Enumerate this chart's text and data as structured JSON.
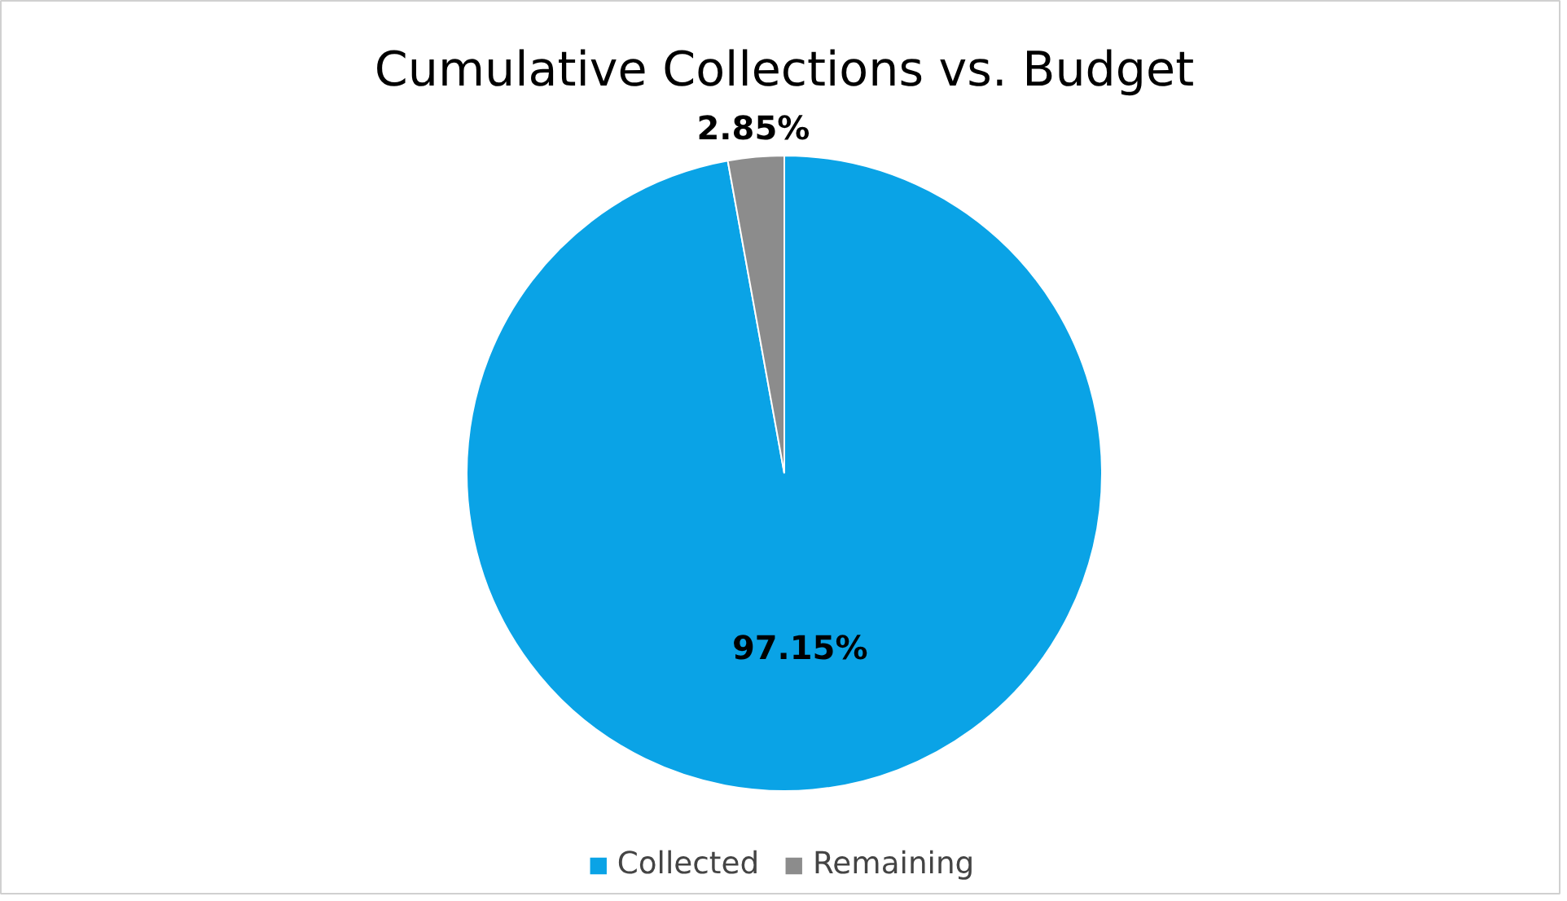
{
  "chart_data": {
    "type": "pie",
    "title": "Cumulative Collections vs. Budget",
    "categories": [
      "Collected",
      "Remaining"
    ],
    "values": [
      97.15,
      2.85
    ],
    "colors": [
      "#0aa3e6",
      "#8c8c8c"
    ],
    "value_labels": [
      "97.15%",
      "2.85%"
    ],
    "legend": "bottom"
  }
}
